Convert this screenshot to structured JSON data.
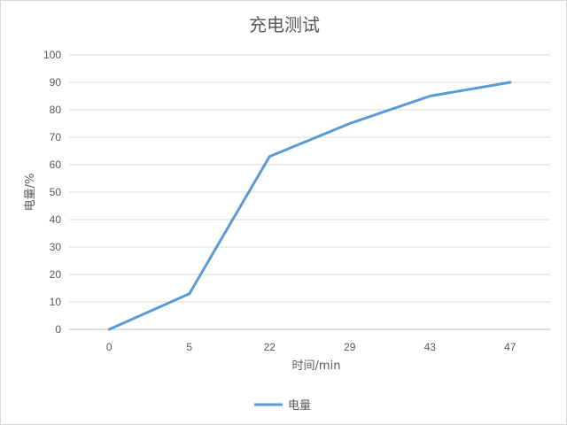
{
  "chart_data": {
    "type": "line",
    "title": "充电测试",
    "xlabel": "时间/min",
    "ylabel": "电量/%",
    "categories": [
      "0",
      "5",
      "22",
      "29",
      "43",
      "47"
    ],
    "series": [
      {
        "name": "电量",
        "values": [
          0,
          13,
          63,
          75,
          85,
          90
        ],
        "color": "#5b9bd5"
      }
    ],
    "ylim": [
      0,
      100
    ],
    "yticks": [
      0,
      10,
      20,
      30,
      40,
      50,
      60,
      70,
      80,
      90,
      100
    ],
    "grid": "horizontal",
    "legend": "bottom"
  }
}
